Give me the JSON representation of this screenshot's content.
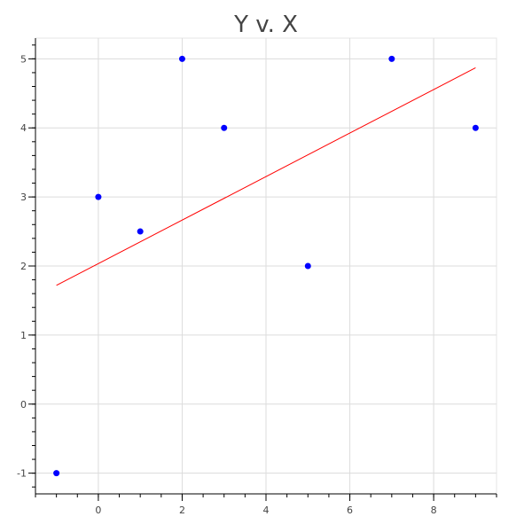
{
  "chart_data": {
    "type": "scatter",
    "title": "Y v. X",
    "xlabel": "",
    "ylabel": "",
    "xlim": [
      -1.5,
      9.5
    ],
    "ylim": [
      -1.3,
      5.3
    ],
    "x_ticks": [
      0,
      2,
      4,
      6,
      8
    ],
    "y_ticks": [
      -1,
      0,
      1,
      2,
      3,
      4,
      5
    ],
    "x_minor_step": 0.5,
    "y_minor_step": 0.2,
    "grid": true,
    "series": [
      {
        "type": "scatter",
        "color": "#0000ff",
        "points": [
          {
            "x": -1,
            "y": -1
          },
          {
            "x": 0,
            "y": 3
          },
          {
            "x": 1,
            "y": 2.5
          },
          {
            "x": 2,
            "y": 5
          },
          {
            "x": 3,
            "y": 4
          },
          {
            "x": 5,
            "y": 2
          },
          {
            "x": 7,
            "y": 5
          },
          {
            "x": 9,
            "y": 4
          }
        ]
      },
      {
        "type": "line",
        "color": "#ff0000",
        "points": [
          {
            "x": -1,
            "y": 1.72
          },
          {
            "x": 9,
            "y": 4.87
          }
        ]
      }
    ]
  }
}
